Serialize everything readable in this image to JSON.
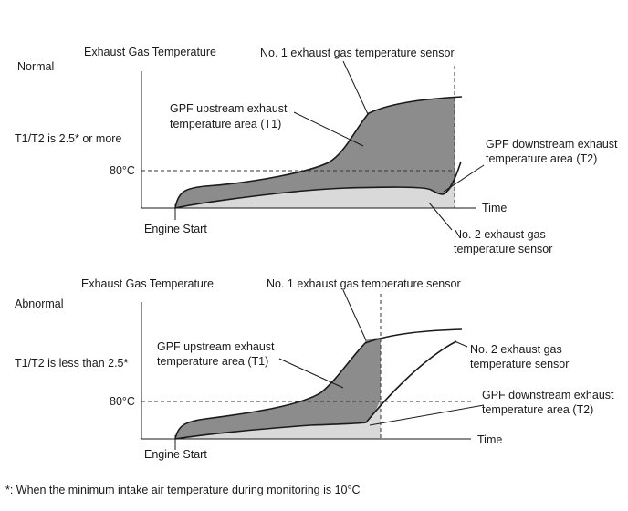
{
  "normal": {
    "state_label": "Normal",
    "y_axis_label": "Exhaust Gas Temperature",
    "sensor1_label": "No. 1 exhaust gas temperature sensor",
    "upstream_label_line1": "GPF upstream exhaust",
    "upstream_label_line2": "temperature area (T1)",
    "ratio_label": "T1/T2 is 2.5* or more",
    "threshold_label": "80°C",
    "downstream_label_line1": "GPF downstream exhaust",
    "downstream_label_line2": "temperature area (T2)",
    "x_axis_label": "Time",
    "engine_start_label": "Engine Start",
    "sensor2_label_line1": "No. 2 exhaust gas",
    "sensor2_label_line2": "temperature sensor"
  },
  "abnormal": {
    "state_label": "Abnormal",
    "y_axis_label": "Exhaust Gas Temperature",
    "sensor1_label": "No. 1 exhaust gas temperature sensor",
    "upstream_label_line1": "GPF upstream exhaust",
    "upstream_label_line2": "temperature area (T1)",
    "ratio_label": "T1/T2 is less than 2.5*",
    "threshold_label": "80°C",
    "sensor2_label_line1": "No. 2 exhaust gas",
    "sensor2_label_line2": "temperature sensor",
    "downstream_label_line1": "GPF downstream exhaust",
    "downstream_label_line2": "temperature area (T2)",
    "x_axis_label": "Time",
    "engine_start_label": "Engine Start"
  },
  "footnote": "*: When the minimum intake air temperature during monitoring is 10°C",
  "colors": {
    "upstream_fill": "#8c8c8c",
    "downstream_fill": "#d9d9d9",
    "line": "#1a1a1a"
  }
}
